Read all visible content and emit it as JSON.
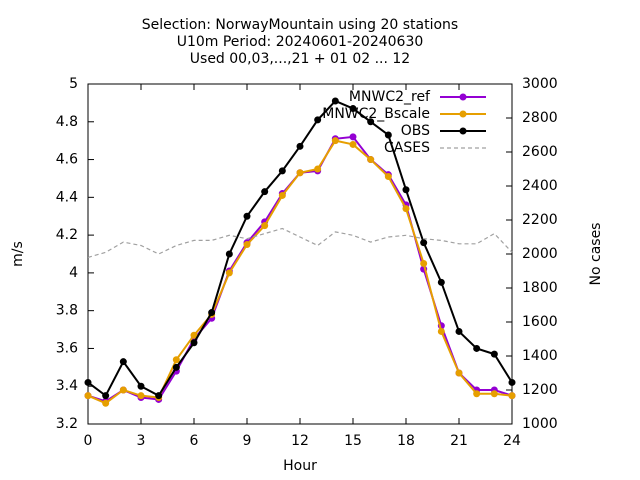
{
  "chart_data": {
    "type": "line",
    "title": [
      "Selection: NorwayMountain using    20 stations",
      "U10m   Period: 20240601-20240630",
      "Used 00,03,...,21 + 01 02 ... 12"
    ],
    "x_label": "Hour",
    "y_label": "m/s",
    "y2_label": "No cases",
    "x": [
      0,
      1,
      2,
      3,
      4,
      5,
      6,
      7,
      8,
      9,
      10,
      11,
      12,
      13,
      14,
      15,
      16,
      17,
      18,
      19,
      20,
      21,
      22,
      23,
      24
    ],
    "xlim": [
      0,
      24
    ],
    "xticks": [
      0,
      3,
      6,
      9,
      12,
      15,
      18,
      21,
      24
    ],
    "ylim": [
      3.2,
      5
    ],
    "yticks": [
      3.2,
      3.4,
      3.6,
      3.8,
      4,
      4.2,
      4.4,
      4.6,
      4.8,
      5
    ],
    "y2lim": [
      1000,
      3000
    ],
    "y2ticks": [
      1000,
      1200,
      1400,
      1600,
      1800,
      2000,
      2200,
      2400,
      2600,
      2800,
      3000
    ],
    "legend": "top-right",
    "series": [
      {
        "name": "MNWC2_ref",
        "color": "#9400d3",
        "style": "solid",
        "markers": true,
        "values": [
          3.35,
          3.32,
          3.38,
          3.34,
          3.33,
          3.48,
          3.65,
          3.76,
          4.01,
          4.16,
          4.27,
          4.42,
          4.53,
          4.54,
          4.71,
          4.72,
          4.6,
          4.52,
          4.36,
          4.02,
          3.72,
          3.47,
          3.38,
          3.38,
          3.35
        ]
      },
      {
        "name": "MNWC2_Bscale",
        "color": "#e69f00",
        "style": "solid",
        "markers": true,
        "values": [
          3.35,
          3.31,
          3.38,
          3.35,
          3.34,
          3.54,
          3.67,
          3.78,
          4.0,
          4.15,
          4.25,
          4.41,
          4.53,
          4.55,
          4.7,
          4.68,
          4.6,
          4.51,
          4.34,
          4.05,
          3.69,
          3.47,
          3.36,
          3.36,
          3.35
        ]
      },
      {
        "name": "OBS",
        "color": "#000000",
        "style": "solid",
        "markers": true,
        "values": [
          3.42,
          3.35,
          3.53,
          3.4,
          3.35,
          3.5,
          3.63,
          3.79,
          4.1,
          4.3,
          4.43,
          4.54,
          4.67,
          4.81,
          4.91,
          4.87,
          4.8,
          4.73,
          4.44,
          4.16,
          3.95,
          3.69,
          3.6,
          3.57,
          3.42
        ]
      },
      {
        "name": "CASES",
        "color": "#a0a0a0",
        "style": "dashed",
        "markers": false,
        "axis": "y2",
        "values": [
          1980,
          2010,
          2070,
          2050,
          2000,
          2050,
          2080,
          2080,
          2110,
          2090,
          2120,
          2150,
          2100,
          2050,
          2130,
          2110,
          2070,
          2100,
          2110,
          2090,
          2080,
          2060,
          2060,
          2120,
          2010
        ]
      }
    ]
  }
}
